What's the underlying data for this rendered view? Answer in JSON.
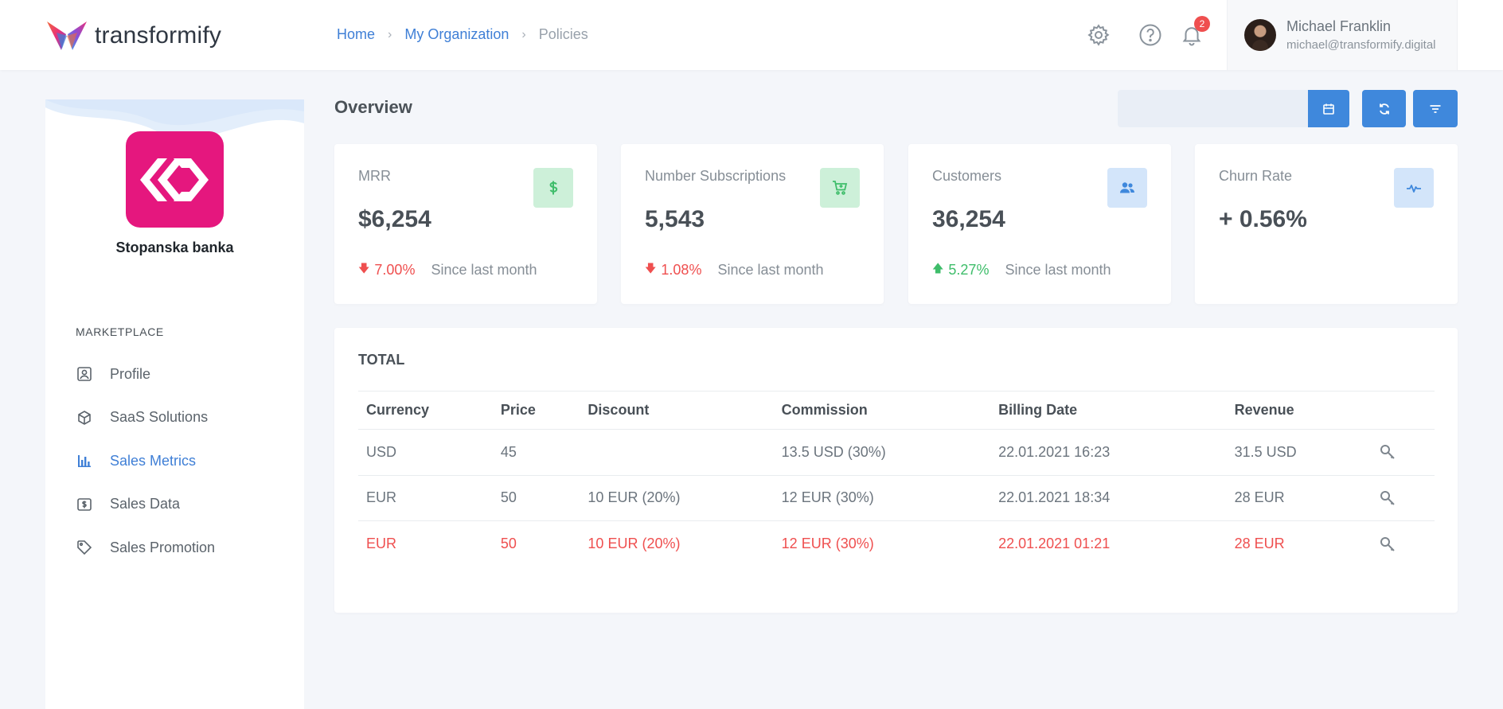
{
  "header": {
    "brand": "transformify",
    "breadcrumb": [
      {
        "label": "Home"
      },
      {
        "label": "My Organization"
      },
      {
        "label": "Policies"
      }
    ],
    "icons": [
      "gear-icon",
      "help-icon",
      "bell-icon"
    ],
    "notification_count": "2",
    "user": {
      "name": "Michael Franklin",
      "email": "michael@transformify.digital"
    }
  },
  "sidebar": {
    "org_name": "Stopanska banka",
    "section_label": "MARKETPLACE",
    "items": [
      {
        "label": "Profile",
        "icon": "profile-icon"
      },
      {
        "label": "SaaS Solutions",
        "icon": "box-icon"
      },
      {
        "label": "Sales Metrics",
        "icon": "bar-chart-icon",
        "active": true
      },
      {
        "label": "Sales Data",
        "icon": "dollar-note-icon"
      },
      {
        "label": "Sales Promotion",
        "icon": "tag-icon"
      }
    ]
  },
  "main": {
    "title": "Overview",
    "toolbar": {
      "date_value": "",
      "buttons": [
        "calendar-icon",
        "refresh-icon",
        "filter-icon"
      ]
    },
    "cards": [
      {
        "label": "MRR",
        "value": "$6,254",
        "icon": "dollar-icon",
        "trend": "7.00%",
        "trend_dir": "down",
        "since": "Since last month"
      },
      {
        "label": "Number Subscriptions",
        "value": "5,543",
        "icon": "cart-icon",
        "trend": "1.08%",
        "trend_dir": "down",
        "since": "Since last month"
      },
      {
        "label": "Customers",
        "value": "36,254",
        "icon": "users-icon",
        "trend": "5.27%",
        "trend_dir": "up",
        "since": "Since last month"
      },
      {
        "label": "Churn Rate",
        "value": "+ 0.56%",
        "icon": "pulse-icon"
      }
    ],
    "colors": {
      "accent": "#3f88dc",
      "negative": "#ef4f4f",
      "positive": "#3ebd6a",
      "brand_pink": "#e5177e"
    },
    "total": {
      "title": "TOTAL",
      "columns": [
        "Currency",
        "Price",
        "Discount",
        "Commission",
        "Billing Date",
        "Revenue"
      ],
      "rows": [
        {
          "currency": "USD",
          "price": "45",
          "discount": "",
          "commission": "13.5 USD (30%)",
          "billing_date": "22.01.2021 16:23",
          "revenue": "31.5 USD",
          "highlight": false
        },
        {
          "currency": "EUR",
          "price": "50",
          "discount": "10 EUR (20%)",
          "commission": "12 EUR (30%)",
          "billing_date": "22.01.2021 18:34",
          "revenue": "28 EUR",
          "highlight": false
        },
        {
          "currency": "EUR",
          "price": "50",
          "discount": "10 EUR (20%)",
          "commission": "12 EUR (30%)",
          "billing_date": "22.01.2021 01:21",
          "revenue": "28 EUR",
          "highlight": true
        }
      ]
    }
  }
}
